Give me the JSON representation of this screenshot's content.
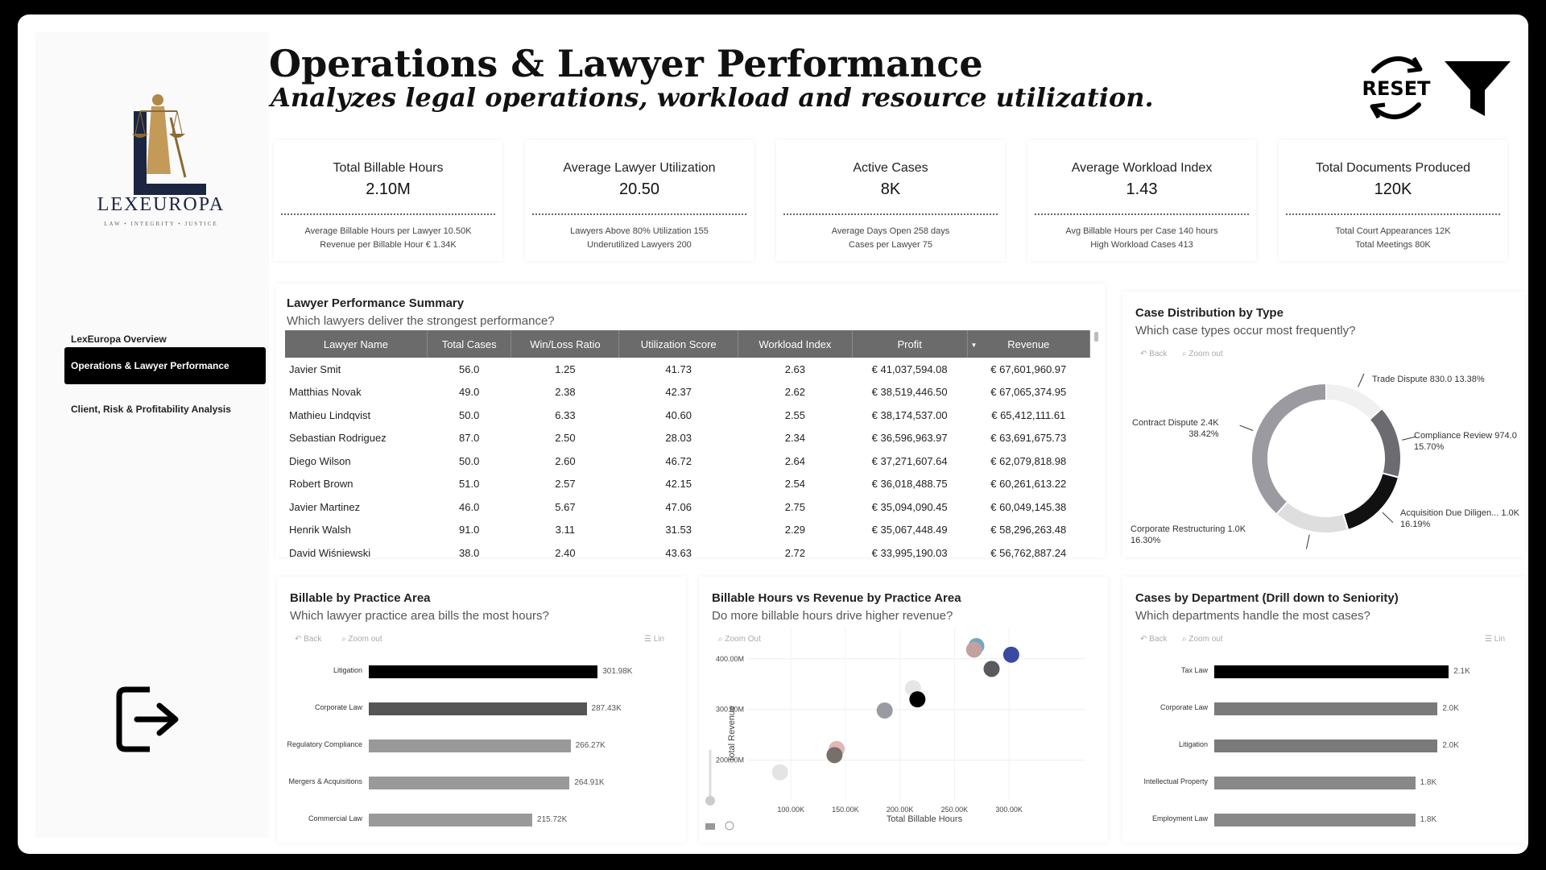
{
  "brand": {
    "name": "LEXEUROPA",
    "tagline": "LAW • INTEGRITY • JUSTICE"
  },
  "header": {
    "title": "Operations & Lawyer Performance",
    "subtitle": "Analyzes legal operations, workload and resource utilization.",
    "reset_label": "RESET"
  },
  "nav": [
    {
      "label": "LexEuropa Overview"
    },
    {
      "label": "Operations & Lawyer Performance"
    },
    {
      "label": "Client, Risk & Profitability Analysis"
    }
  ],
  "kpis": [
    {
      "label": "Total Billable Hours",
      "value": "2.10M",
      "sub1": "Average Billable Hours per Lawyer 10.50K",
      "sub2": "Revenue per Billable Hour € 1.34K"
    },
    {
      "label": "Average Lawyer Utilization",
      "value": "20.50",
      "sub1": "Lawyers Above 80% Utilization 155",
      "sub2": "Underutilized Lawyers 200"
    },
    {
      "label": "Active Cases",
      "value": "8K",
      "sub1": "Average Days Open 258 days",
      "sub2": "Cases per Lawyer 75"
    },
    {
      "label": "Average Workload Index",
      "value": "1.43",
      "sub1": "Avg Billable Hours per Case 140 hours",
      "sub2": "High Workload Cases 413"
    },
    {
      "label": "Total Documents Produced",
      "value": "120K",
      "sub1": "Total Court Appearances 12K",
      "sub2": "Total Meetings 80K"
    }
  ],
  "performance": {
    "title": "Lawyer Performance Summary",
    "subtitle": "Which lawyers deliver the strongest performance?",
    "columns": [
      "Lawyer Name",
      "Total Cases",
      "Win/Loss Ratio",
      "Utilization Score",
      "Workload Index",
      "Profit",
      "Revenue"
    ],
    "rows": [
      [
        "Javier Smit",
        "56.0",
        "1.25",
        "41.73",
        "2.63",
        "€ 41,037,594.08",
        "€ 67,601,960.97"
      ],
      [
        "Matthias Novak",
        "49.0",
        "2.38",
        "42.37",
        "2.62",
        "€ 38,519,446.50",
        "€ 67,065,374.95"
      ],
      [
        "Mathieu Lindqvist",
        "50.0",
        "6.33",
        "40.60",
        "2.55",
        "€ 38,174,537.00",
        "€ 65,412,111.61"
      ],
      [
        "Sebastian Rodriguez",
        "87.0",
        "2.50",
        "28.03",
        "2.34",
        "€ 36,596,963.97",
        "€ 63,691,675.73"
      ],
      [
        "Diego Wilson",
        "50.0",
        "2.60",
        "46.72",
        "2.64",
        "€ 37,271,607.64",
        "€ 62,079,818.98"
      ],
      [
        "Robert Brown",
        "51.0",
        "2.57",
        "42.15",
        "2.54",
        "€ 36,018,488.75",
        "€ 60,261,613.22"
      ],
      [
        "Javier Martinez",
        "46.0",
        "5.67",
        "47.06",
        "2.75",
        "€ 35,094,090.45",
        "€ 60,049,145.38"
      ],
      [
        "Henrik Walsh",
        "91.0",
        "3.11",
        "31.53",
        "2.29",
        "€ 35,067,448.49",
        "€ 58,296,263.48"
      ],
      [
        "David Wiśniewski",
        "38.0",
        "2.40",
        "43.63",
        "2.72",
        "€ 33,995,190.03",
        "€ 56,762,887.24"
      ]
    ]
  },
  "toolbar": {
    "back": "Back",
    "zoom_out": "Zoom out",
    "zoom_out_cap": "Zoom Out",
    "lin": "Lin"
  },
  "case_distribution": {
    "title": "Case Distribution by Type",
    "subtitle": "Which case types occur most frequently?",
    "chart_data": {
      "type": "pie",
      "slices": [
        {
          "label": "Trade Dispute",
          "value": 830.0,
          "value_text": "830.0",
          "percent": "13.38%",
          "color": "#f0f0f0"
        },
        {
          "label": "Compliance Review",
          "value": 974.0,
          "value_text": "974.0",
          "percent": "15.70%",
          "color": "#6b6b70"
        },
        {
          "label": "Acquisition Due Diligen...",
          "value": 1004,
          "value_text": "1.0K",
          "percent": "16.19%",
          "color": "#111111"
        },
        {
          "label": "Corporate Restructuring",
          "value": 1011,
          "value_text": "1.0K",
          "percent": "16.30%",
          "color": "#dedede"
        },
        {
          "label": "Contract Dispute",
          "value": 2383,
          "value_text": "2.4K",
          "percent": "38.42%",
          "color": "#9a9aa0"
        }
      ]
    }
  },
  "billable_practice": {
    "title": "Billable by Practice Area",
    "subtitle": "Which lawyer practice area bills the most hours?",
    "chart_data": {
      "type": "bar",
      "orientation": "horizontal",
      "categories": [
        "Litigation",
        "Corporate Law",
        "Regulatory Compliance",
        "Mergers & Acquisitions",
        "Commercial Law"
      ],
      "values": [
        301980,
        287430,
        266270,
        264910,
        215720
      ],
      "value_labels": [
        "301.98K",
        "287.43K",
        "266.27K",
        "264.91K",
        "215.72K"
      ],
      "colors": [
        "#000000",
        "#555555",
        "#999999",
        "#999999",
        "#999999"
      ],
      "xlim": [
        0,
        340000
      ]
    }
  },
  "scatter": {
    "title": "Billable Hours vs Revenue by Practice Area",
    "subtitle": "Do more billable hours drive higher revenue?",
    "chart_data": {
      "type": "scatter",
      "xlabel": "Total Billable Hours",
      "ylabel": "Total Revenue",
      "x_ticks": [
        "100.00K",
        "150.00K",
        "200.00K",
        "250.00K",
        "300.00K"
      ],
      "y_ticks": [
        "200.00M",
        "300.00M",
        "400.00M"
      ],
      "xlim": [
        60000,
        370000
      ],
      "ylim": [
        120000000,
        460000000
      ],
      "points": [
        {
          "x": 270000,
          "y": 425000000,
          "color": "#6fa8c0"
        },
        {
          "x": 268000,
          "y": 418000000,
          "color": "#c4a0a0"
        },
        {
          "x": 302000,
          "y": 408000000,
          "color": "#3a4aa0"
        },
        {
          "x": 284000,
          "y": 380000000,
          "color": "#5a5a5e"
        },
        {
          "x": 212000,
          "y": 342000000,
          "color": "#e6e6e6"
        },
        {
          "x": 216000,
          "y": 320000000,
          "color": "#000000"
        },
        {
          "x": 186000,
          "y": 298000000,
          "color": "#9a9aa2"
        },
        {
          "x": 142000,
          "y": 222000000,
          "color": "#e0b8b8"
        },
        {
          "x": 140000,
          "y": 210000000,
          "color": "#77706a"
        },
        {
          "x": 90000,
          "y": 176000000,
          "color": "#e4e4e4"
        }
      ]
    }
  },
  "cases_department": {
    "title": "Cases by Department (Drill down to Seniority)",
    "subtitle": "Which departments handle the most cases?",
    "chart_data": {
      "type": "bar",
      "orientation": "horizontal",
      "categories": [
        "Tax Law",
        "Corporate Law",
        "Litigation",
        "Intellectual Property",
        "Employment Law"
      ],
      "values": [
        2100,
        2000,
        2000,
        1800,
        1800
      ],
      "value_labels": [
        "2.1K",
        "2.0K",
        "2.0K",
        "1.8K",
        "1.8K"
      ],
      "colors": [
        "#000000",
        "#7a7a7a",
        "#7a7a7a",
        "#888888",
        "#888888"
      ],
      "xlim": [
        0,
        2250
      ]
    }
  }
}
